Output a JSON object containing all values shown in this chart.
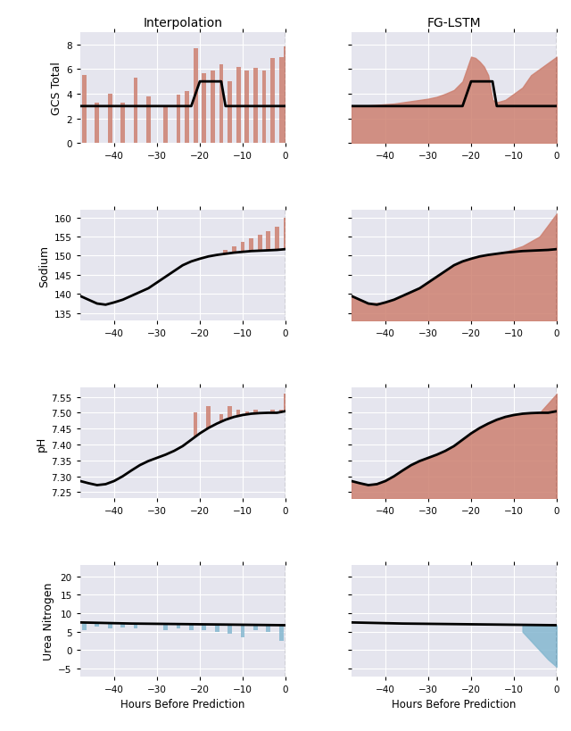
{
  "title_left": "Interpolation",
  "title_right": "FG-LSTM",
  "xlabel": "Hours Before Prediction",
  "bg_color": "#e5e5ee",
  "row_labels": [
    "GCS Total",
    "Sodium",
    "pH",
    "Urea Nitrogen"
  ],
  "x_ticks": [
    -40,
    -30,
    -20,
    -10,
    0
  ],
  "x_range": [
    -48,
    0
  ],
  "salmon_color": "#cd8070",
  "blue_color": "#85b8d0",
  "gcs_line_x": [
    -48,
    -44,
    -30,
    -22,
    -20,
    -15,
    -14,
    -5,
    0
  ],
  "gcs_line_y": [
    3.0,
    3.0,
    3.0,
    3.0,
    5.0,
    5.0,
    3.0,
    3.0,
    3.0
  ],
  "gcs_interp_bars_x": [
    -47,
    -44,
    -41,
    -38,
    -35,
    -32,
    -28,
    -25,
    -23,
    -21,
    -19,
    -17,
    -15,
    -13,
    -11,
    -9,
    -7,
    -5,
    -3,
    -1,
    0
  ],
  "gcs_interp_bars_h": [
    5.5,
    3.3,
    4.0,
    3.3,
    5.3,
    3.8,
    3.0,
    3.9,
    4.2,
    7.7,
    5.7,
    5.9,
    6.4,
    5.0,
    6.2,
    5.9,
    6.1,
    5.9,
    6.9,
    7.0,
    7.8
  ],
  "gcs_lstm_fill_x": [
    -48,
    -46,
    -44,
    -42,
    -40,
    -38,
    -36,
    -34,
    -32,
    -30,
    -28,
    -26,
    -24,
    -22,
    -21,
    -20,
    -19,
    -18,
    -17,
    -16,
    -15,
    -14,
    -12,
    -10,
    -8,
    -6,
    -4,
    -2,
    0
  ],
  "gcs_lstm_fill_y": [
    3.0,
    3.0,
    3.05,
    3.1,
    3.15,
    3.2,
    3.3,
    3.4,
    3.5,
    3.6,
    3.75,
    4.0,
    4.3,
    5.0,
    6.0,
    7.0,
    6.9,
    6.6,
    6.2,
    5.5,
    3.5,
    3.3,
    3.5,
    4.0,
    4.5,
    5.5,
    6.0,
    6.5,
    7.0
  ],
  "gcs_ylim": [
    0,
    9
  ],
  "gcs_yticks": [
    0,
    2,
    4,
    6,
    8
  ],
  "sodium_line_x": [
    -48,
    -46,
    -44,
    -42,
    -40,
    -38,
    -36,
    -34,
    -32,
    -30,
    -28,
    -26,
    -24,
    -22,
    -20,
    -18,
    -16,
    -14,
    -12,
    -10,
    -8,
    -6,
    -4,
    -2,
    0
  ],
  "sodium_line_y": [
    139.5,
    138.5,
    137.5,
    137.2,
    137.8,
    138.5,
    139.5,
    140.5,
    141.5,
    143.0,
    144.5,
    146.0,
    147.5,
    148.5,
    149.2,
    149.8,
    150.2,
    150.5,
    150.8,
    151.0,
    151.2,
    151.3,
    151.4,
    151.5,
    151.7
  ],
  "sodium_interp_bars_x": [
    -19,
    -17,
    -14,
    -12,
    -10,
    -8,
    -6,
    -4,
    -2,
    0
  ],
  "sodium_interp_bars_h": [
    148.5,
    149.5,
    151.5,
    152.5,
    153.5,
    154.5,
    155.5,
    156.5,
    157.5,
    160.0
  ],
  "sodium_lstm_fill_x": [
    -48,
    -44,
    -40,
    -36,
    -32,
    -28,
    -24,
    -20,
    -16,
    -12,
    -8,
    -4,
    0
  ],
  "sodium_lstm_fill_y": [
    139.5,
    137.5,
    137.8,
    139.5,
    141.5,
    144.5,
    147.5,
    149.2,
    150.2,
    151.0,
    152.5,
    155.0,
    161.0
  ],
  "sodium_ylim": [
    133,
    162
  ],
  "sodium_yticks": [
    135,
    140,
    145,
    150,
    155,
    160
  ],
  "ph_line_x": [
    -48,
    -46,
    -44,
    -42,
    -40,
    -38,
    -36,
    -34,
    -32,
    -30,
    -28,
    -26,
    -24,
    -22,
    -20,
    -18,
    -16,
    -14,
    -12,
    -10,
    -8,
    -6,
    -4,
    -2,
    0
  ],
  "ph_line_y": [
    7.285,
    7.278,
    7.272,
    7.275,
    7.285,
    7.3,
    7.318,
    7.335,
    7.348,
    7.358,
    7.368,
    7.38,
    7.395,
    7.415,
    7.435,
    7.452,
    7.466,
    7.478,
    7.487,
    7.493,
    7.497,
    7.499,
    7.5,
    7.5,
    7.505
  ],
  "ph_interp_bars_x": [
    -21,
    -18,
    -15,
    -13,
    -11,
    -9,
    -7,
    -5,
    -3,
    -1,
    0
  ],
  "ph_interp_bars_h": [
    7.5,
    7.52,
    7.495,
    7.52,
    7.51,
    7.505,
    7.51,
    7.5,
    7.51,
    7.51,
    7.56
  ],
  "ph_lstm_fill_x": [
    -48,
    -44,
    -40,
    -36,
    -32,
    -28,
    -24,
    -20,
    -16,
    -12,
    -8,
    -4,
    0
  ],
  "ph_lstm_fill_y": [
    7.285,
    7.272,
    7.285,
    7.318,
    7.348,
    7.368,
    7.395,
    7.435,
    7.466,
    7.487,
    7.497,
    7.5,
    7.56
  ],
  "ph_ylim": [
    7.23,
    7.58
  ],
  "ph_yticks": [
    7.25,
    7.3,
    7.35,
    7.4,
    7.45,
    7.5,
    7.55
  ],
  "urea_line_x": [
    -48,
    -44,
    -40,
    -36,
    -32,
    -28,
    -24,
    -20,
    -16,
    -12,
    -8,
    -4,
    0
  ],
  "urea_line_y": [
    7.5,
    7.4,
    7.3,
    7.2,
    7.15,
    7.1,
    7.05,
    7.0,
    6.95,
    6.9,
    6.85,
    6.8,
    6.75
  ],
  "urea_interp_bars_x": [
    -47,
    -44,
    -41,
    -38,
    -35,
    -28,
    -25,
    -22,
    -19,
    -16,
    -13,
    -10,
    -7,
    -4,
    -1
  ],
  "urea_interp_bars_h": [
    5.5,
    6.3,
    6.0,
    6.2,
    5.8,
    5.5,
    6.0,
    5.5,
    5.3,
    5.0,
    4.5,
    3.5,
    5.5,
    5.0,
    2.5
  ],
  "urea_lstm_fill_x": [
    -10,
    -8,
    -6,
    -4,
    -2,
    0
  ],
  "urea_lstm_fill_y": [
    6.9,
    5.0,
    2.5,
    0.0,
    -2.5,
    -4.5
  ],
  "urea_ylim": [
    -7,
    23
  ],
  "urea_yticks": [
    -5,
    0,
    5,
    10,
    15,
    20
  ]
}
